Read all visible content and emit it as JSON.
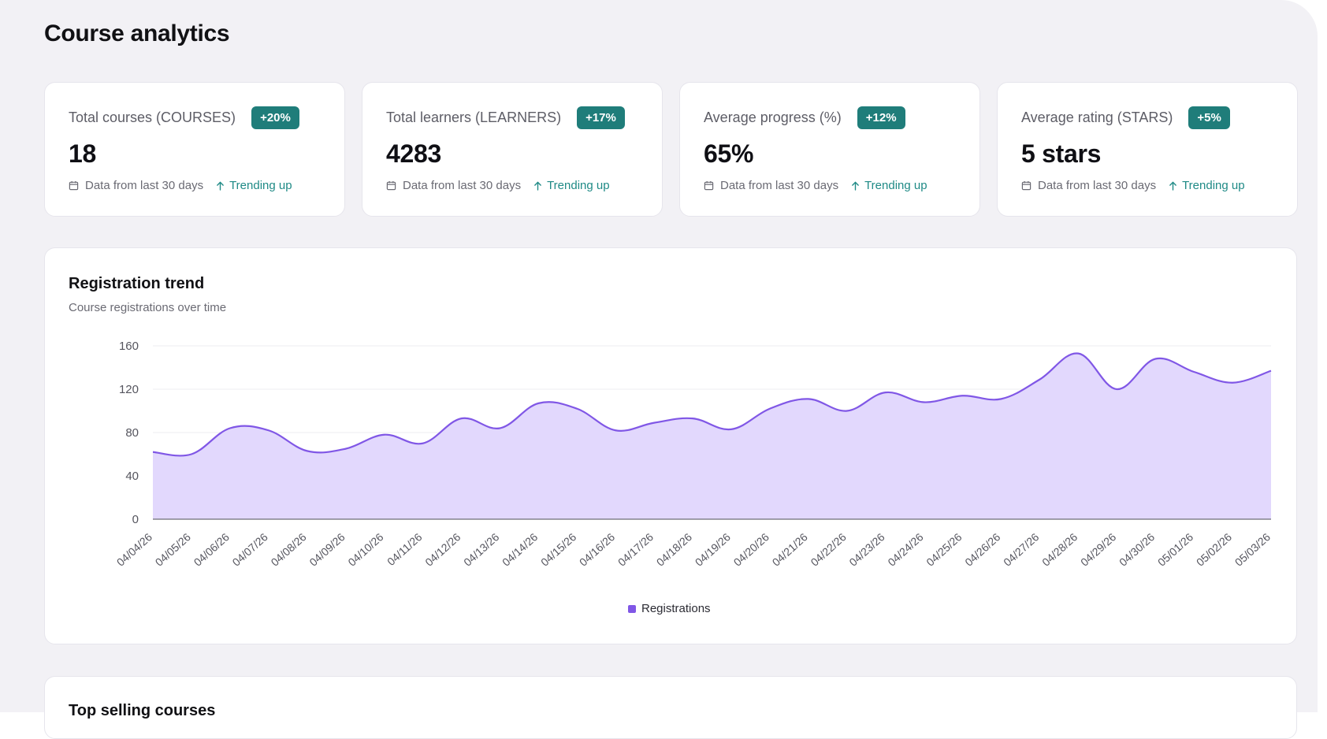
{
  "page": {
    "title": "Course analytics"
  },
  "cards": [
    {
      "label": "Total courses (COURSES)",
      "badge": "+20%",
      "value": "18",
      "footer_date": "Data from last 30 days",
      "footer_trend": "Trending up"
    },
    {
      "label": "Total learners (LEARNERS)",
      "badge": "+17%",
      "value": "4283",
      "footer_date": "Data from last 30 days",
      "footer_trend": "Trending up"
    },
    {
      "label": "Average progress (%)",
      "badge": "+12%",
      "value": "65%",
      "footer_date": "Data from last 30 days",
      "footer_trend": "Trending up"
    },
    {
      "label": "Average rating (STARS)",
      "badge": "+5%",
      "value": "5 stars",
      "footer_date": "Data from last 30 days",
      "footer_trend": "Trending up"
    }
  ],
  "icons": {
    "date": "calendar-icon",
    "trend": "arrow-up-icon"
  },
  "colors": {
    "badge": "#1f7d7a",
    "trend": "#1f8a86",
    "line": "#8057e6",
    "area": "#e2d8fd"
  },
  "registration_chart": {
    "title": "Registration trend",
    "subtitle": "Course registrations over time",
    "legend": "Registrations"
  },
  "chart_data": {
    "type": "area",
    "x": [
      "04/04/26",
      "04/05/26",
      "04/06/26",
      "04/07/26",
      "04/08/26",
      "04/09/26",
      "04/10/26",
      "04/11/26",
      "04/12/26",
      "04/13/26",
      "04/14/26",
      "04/15/26",
      "04/16/26",
      "04/17/26",
      "04/18/26",
      "04/19/26",
      "04/20/26",
      "04/21/26",
      "04/22/26",
      "04/23/26",
      "04/24/26",
      "04/25/26",
      "04/26/26",
      "04/27/26",
      "04/28/26",
      "04/29/26",
      "04/30/26",
      "05/01/26",
      "05/02/26",
      "05/03/26"
    ],
    "series": [
      {
        "name": "Registrations",
        "values": [
          62,
          60,
          84,
          82,
          63,
          65,
          78,
          70,
          93,
          84,
          107,
          102,
          82,
          89,
          93,
          83,
          102,
          111,
          100,
          117,
          108,
          114,
          111,
          129,
          153,
          120,
          148,
          136,
          126,
          137
        ]
      }
    ],
    "ylim": [
      0,
      160
    ],
    "yticks": [
      0,
      40,
      80,
      120,
      160
    ],
    "grid": true,
    "legend": "bottom-center"
  },
  "bottom_section": {
    "title": "Top selling courses"
  }
}
